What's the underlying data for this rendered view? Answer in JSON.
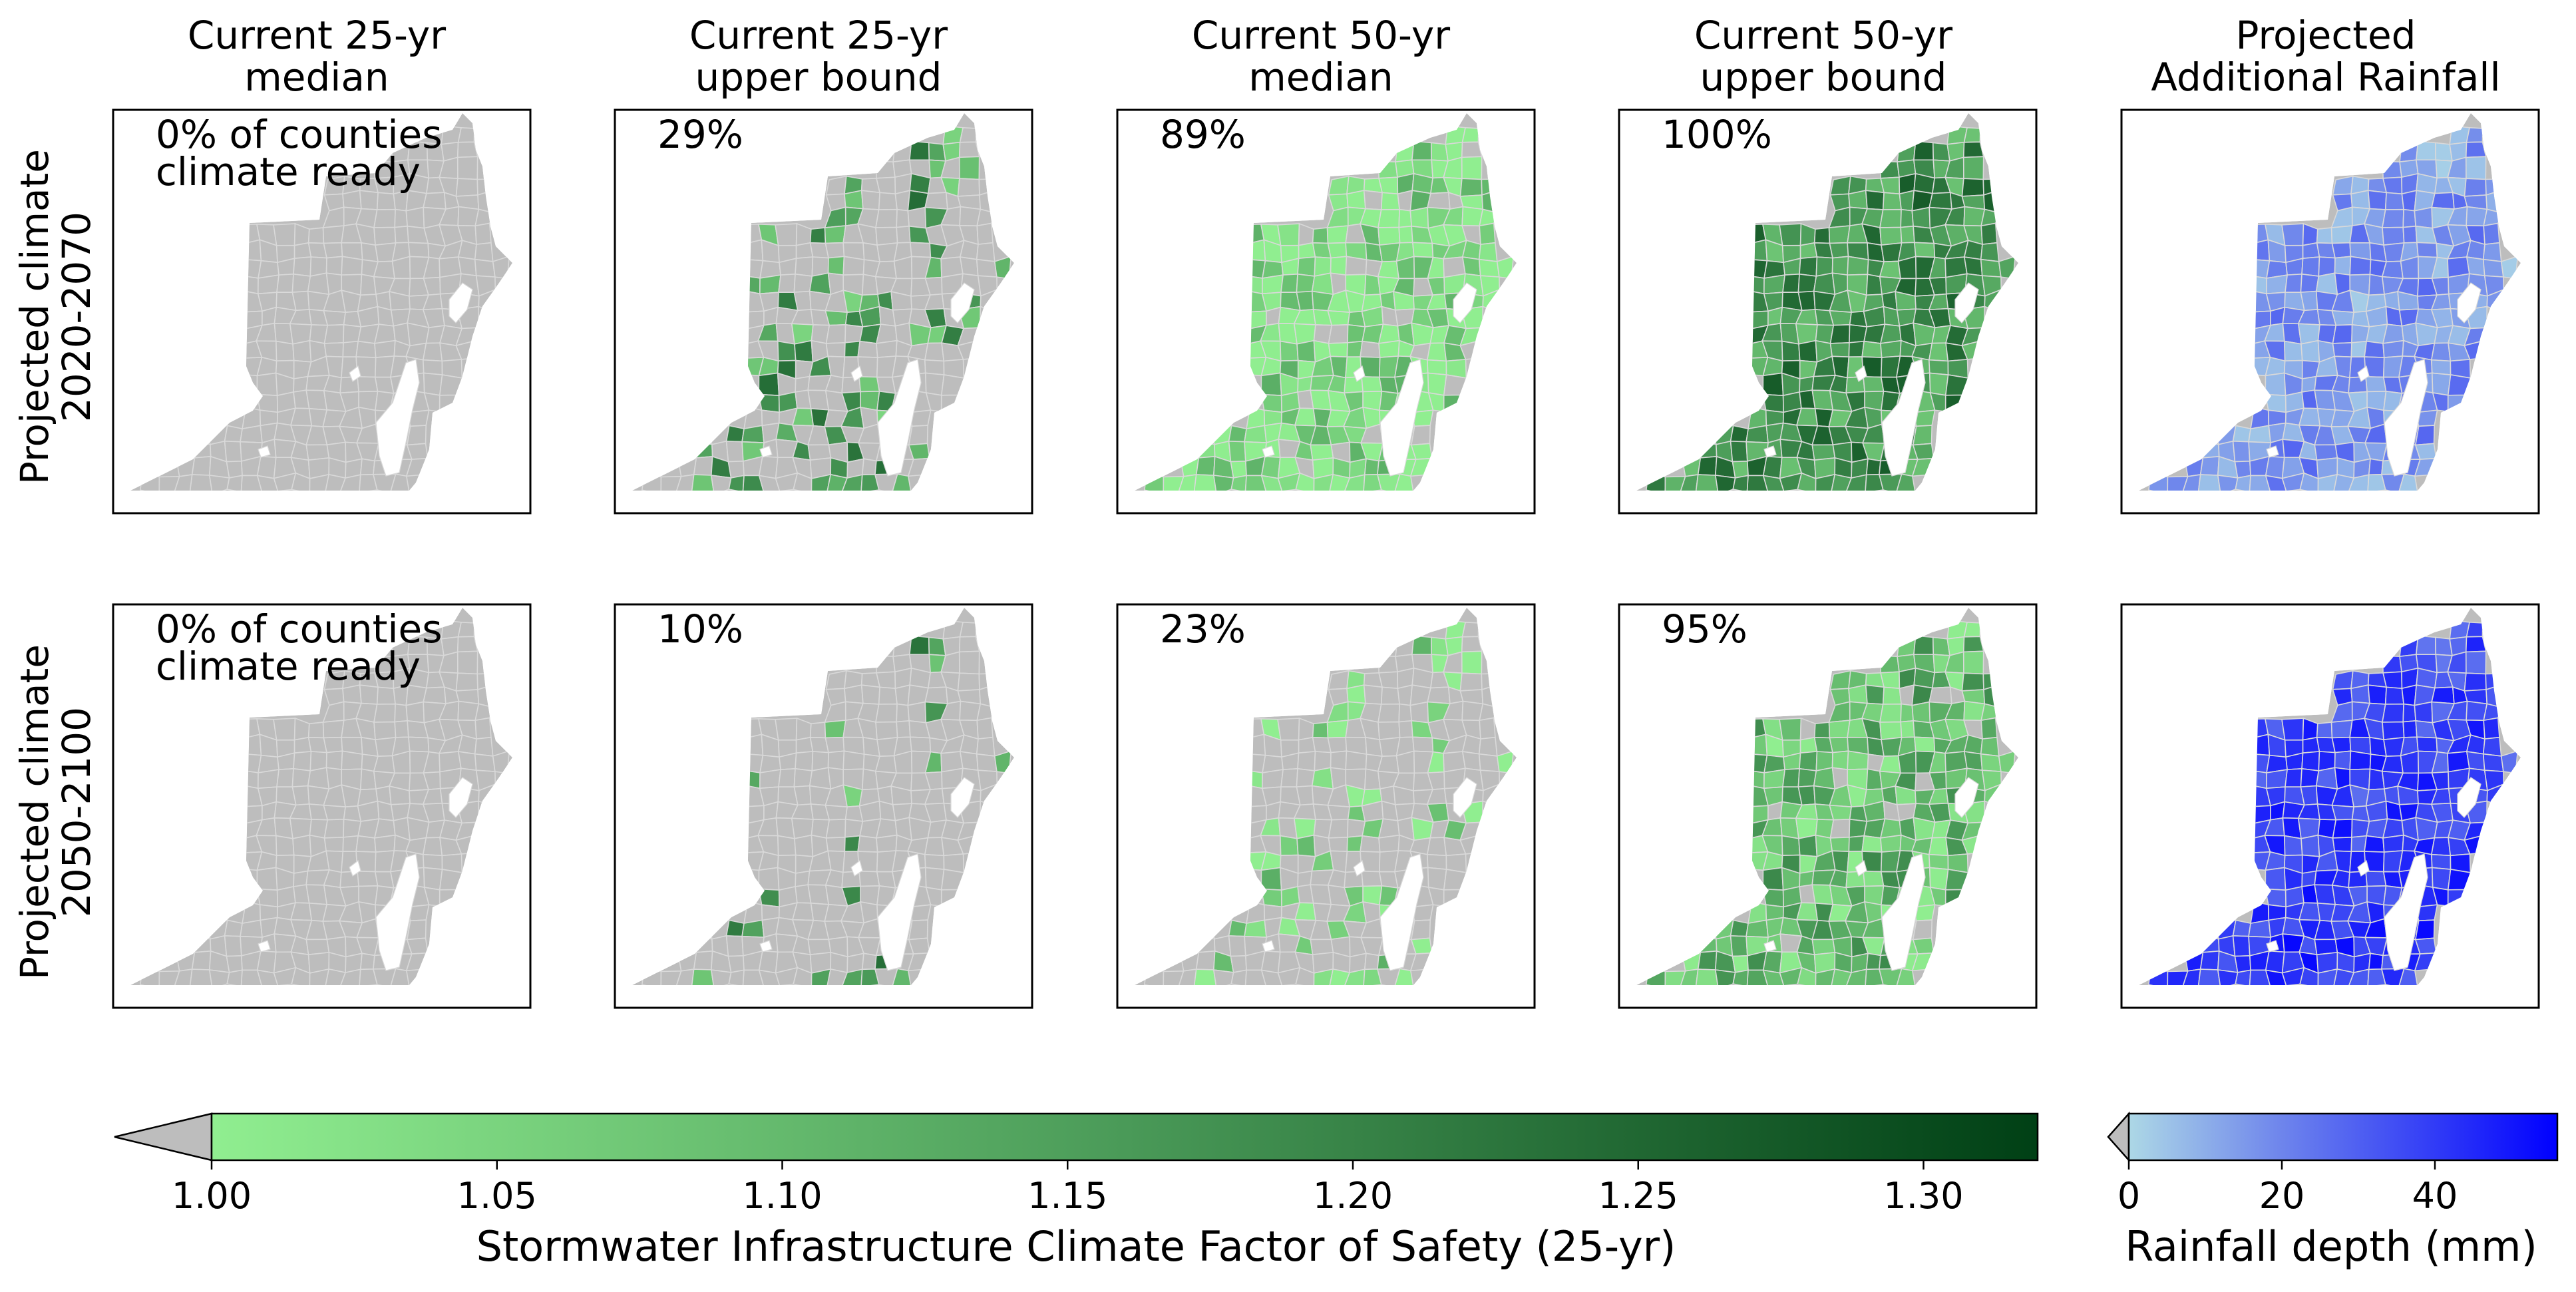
{
  "chart_data": {
    "type": "choropleth-map-grid",
    "columns": [
      {
        "title_line1": "Current 25-yr",
        "title_line2": "median"
      },
      {
        "title_line1": "Current 25-yr",
        "title_line2": "upper bound"
      },
      {
        "title_line1": "Current 50-yr",
        "title_line2": "median"
      },
      {
        "title_line1": "Current 50-yr",
        "title_line2": "upper bound"
      },
      {
        "title_line1": "Projected",
        "title_line2": "Additional Rainfall"
      }
    ],
    "rows": [
      {
        "label_line1": "Projected climate",
        "label_line2": "2020-2070"
      },
      {
        "label_line1": "Projected climate",
        "label_line2": "2050-2100"
      }
    ],
    "percent_climate_ready": [
      [
        "0%",
        "29%",
        "89%",
        "100%"
      ],
      [
        "0%",
        "10%",
        "23%",
        "95%"
      ]
    ],
    "first_panel_suffix_line1": "of counties",
    "first_panel_suffix_line2": "climate ready",
    "green_colorbar": {
      "label": "Stormwater Infrastructure Climate Factor of Safety (25-yr)",
      "min": 1.0,
      "max": 1.32,
      "ticks": [
        "1.00",
        "1.05",
        "1.10",
        "1.15",
        "1.20",
        "1.25",
        "1.30"
      ],
      "tick_values": [
        1.0,
        1.05,
        1.1,
        1.15,
        1.2,
        1.25,
        1.3
      ],
      "under_color": "#bdbdbd",
      "colors": [
        "#90ee90",
        "#004015"
      ]
    },
    "blue_colorbar": {
      "label": "Rainfall depth (mm)",
      "min": 0,
      "max": 56,
      "ticks": [
        "0",
        "20",
        "40"
      ],
      "tick_values": [
        0,
        20,
        40
      ],
      "under_color": "#bdbdbd",
      "colors": [
        "#add8e6",
        "#0000ff"
      ]
    },
    "colors": {
      "no_data_grey": "#bdbdbd",
      "county_border": "#d9d9d9",
      "light_green": "#90ee90",
      "dark_green": "#004015",
      "light_blue": "#add8e6",
      "pure_blue": "#0000ff"
    }
  }
}
